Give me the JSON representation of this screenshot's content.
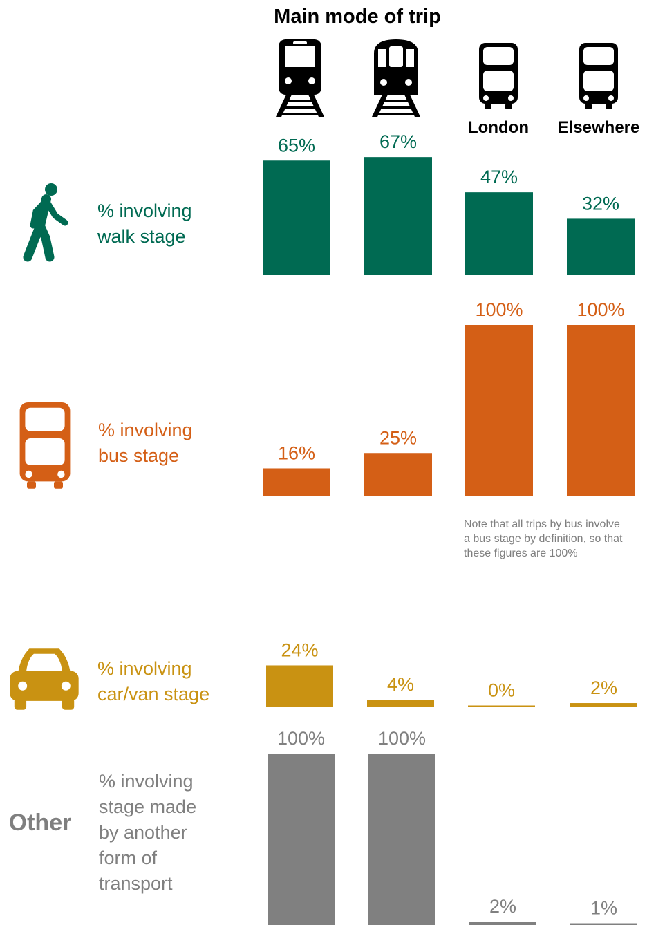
{
  "chart_data": {
    "type": "bar",
    "title": "Main mode of trip",
    "categories": [
      "",
      "",
      "London",
      "Elsewhere"
    ],
    "category_icons": [
      "train-icon",
      "underground-train-icon",
      "bus-icon",
      "bus-icon"
    ],
    "series": [
      {
        "name": "% involving walk stage",
        "lines": [
          "% involving",
          "walk stage"
        ],
        "values": [
          65,
          67,
          47,
          32
        ],
        "labels": [
          "65%",
          "67%",
          "47%",
          "32%"
        ],
        "color": "#006a52",
        "icon": "walking-person-icon"
      },
      {
        "name": "% involving bus stage",
        "lines": [
          "% involving",
          "bus stage"
        ],
        "values": [
          16,
          25,
          100,
          100
        ],
        "labels": [
          "16%",
          "25%",
          "100%",
          "100%"
        ],
        "color": "#d45f16",
        "icon": "bus-icon"
      },
      {
        "name": "% involving car/van stage",
        "lines": [
          "% involving",
          "car/van stage"
        ],
        "values": [
          24,
          4,
          0,
          2
        ],
        "labels": [
          "24%",
          "4%",
          "0%",
          "2%"
        ],
        "color": "#c99212",
        "icon": "car-icon"
      },
      {
        "name": "% involving stage made by another form of transport",
        "lines": [
          "% involving",
          "stage made",
          "by another",
          "form of",
          "transport"
        ],
        "values": [
          100,
          100,
          2,
          1
        ],
        "labels": [
          "100%",
          "100%",
          "2%",
          "1%"
        ],
        "color": "#808080",
        "heading": "Other"
      }
    ],
    "ylim": [
      0,
      100
    ],
    "note_lines": [
      "Note that all trips by bus involve",
      "a bus stage by definition, so that",
      "these figures are 100%"
    ]
  }
}
